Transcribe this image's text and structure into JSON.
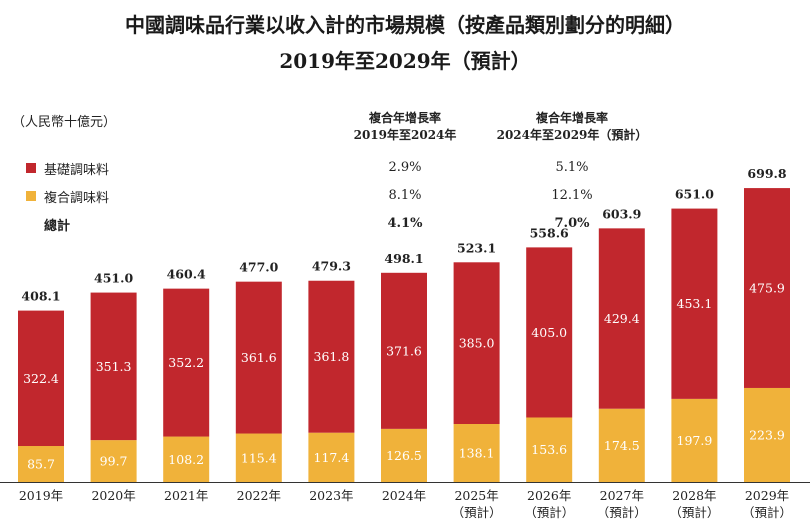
{
  "colors": {
    "basic": "#c1272d",
    "compound": "#f0b23a"
  },
  "legend": [
    {
      "label": "基礎調味料",
      "color": "#c1272d"
    },
    {
      "label": "複合調味料",
      "color": "#f0b23a"
    },
    {
      "label": "總計"
    }
  ],
  "cagr": {
    "col1_header": [
      "複合年增長率",
      "2019年至2024年"
    ],
    "col2_header": [
      "複合年增長率",
      "2024年至2029年（預計）"
    ],
    "basic": [
      "2.9%",
      "5.1%"
    ],
    "compound": [
      "8.1%",
      "12.1%"
    ],
    "total": [
      "4.1%",
      "7.0%"
    ]
  },
  "chart_data": {
    "type": "bar",
    "stacked": true,
    "title": "中國調味品行業以收入計的市場規模（按產品類別劃分的明細）",
    "subtitle": "2019年至2029年（預計）",
    "ylabel": "（人民幣十億元）",
    "categories": [
      [
        "2019年"
      ],
      [
        "2020年"
      ],
      [
        "2021年"
      ],
      [
        "2022年"
      ],
      [
        "2023年"
      ],
      [
        "2024年"
      ],
      [
        "2025年",
        "（預計）"
      ],
      [
        "2026年",
        "（預計）"
      ],
      [
        "2027年",
        "（預計）"
      ],
      [
        "2028年",
        "（預計）"
      ],
      [
        "2029年",
        "（預計）"
      ]
    ],
    "series": [
      {
        "name": "複合調味料",
        "values": [
          85.7,
          99.7,
          108.2,
          115.4,
          117.4,
          126.5,
          138.1,
          153.6,
          174.5,
          197.9,
          223.9
        ]
      },
      {
        "name": "基礎調味料",
        "values": [
          322.4,
          351.3,
          352.2,
          361.6,
          361.8,
          371.6,
          385.0,
          405.0,
          429.4,
          453.1,
          475.9
        ]
      }
    ],
    "totals": [
      "408.1",
      "451.0",
      "460.4",
      "477.0",
      "479.3",
      "498.1",
      "523.1",
      "558.6",
      "603.9",
      "651.0",
      "699.8"
    ],
    "ylim": [
      0,
      700
    ],
    "grid": false
  }
}
